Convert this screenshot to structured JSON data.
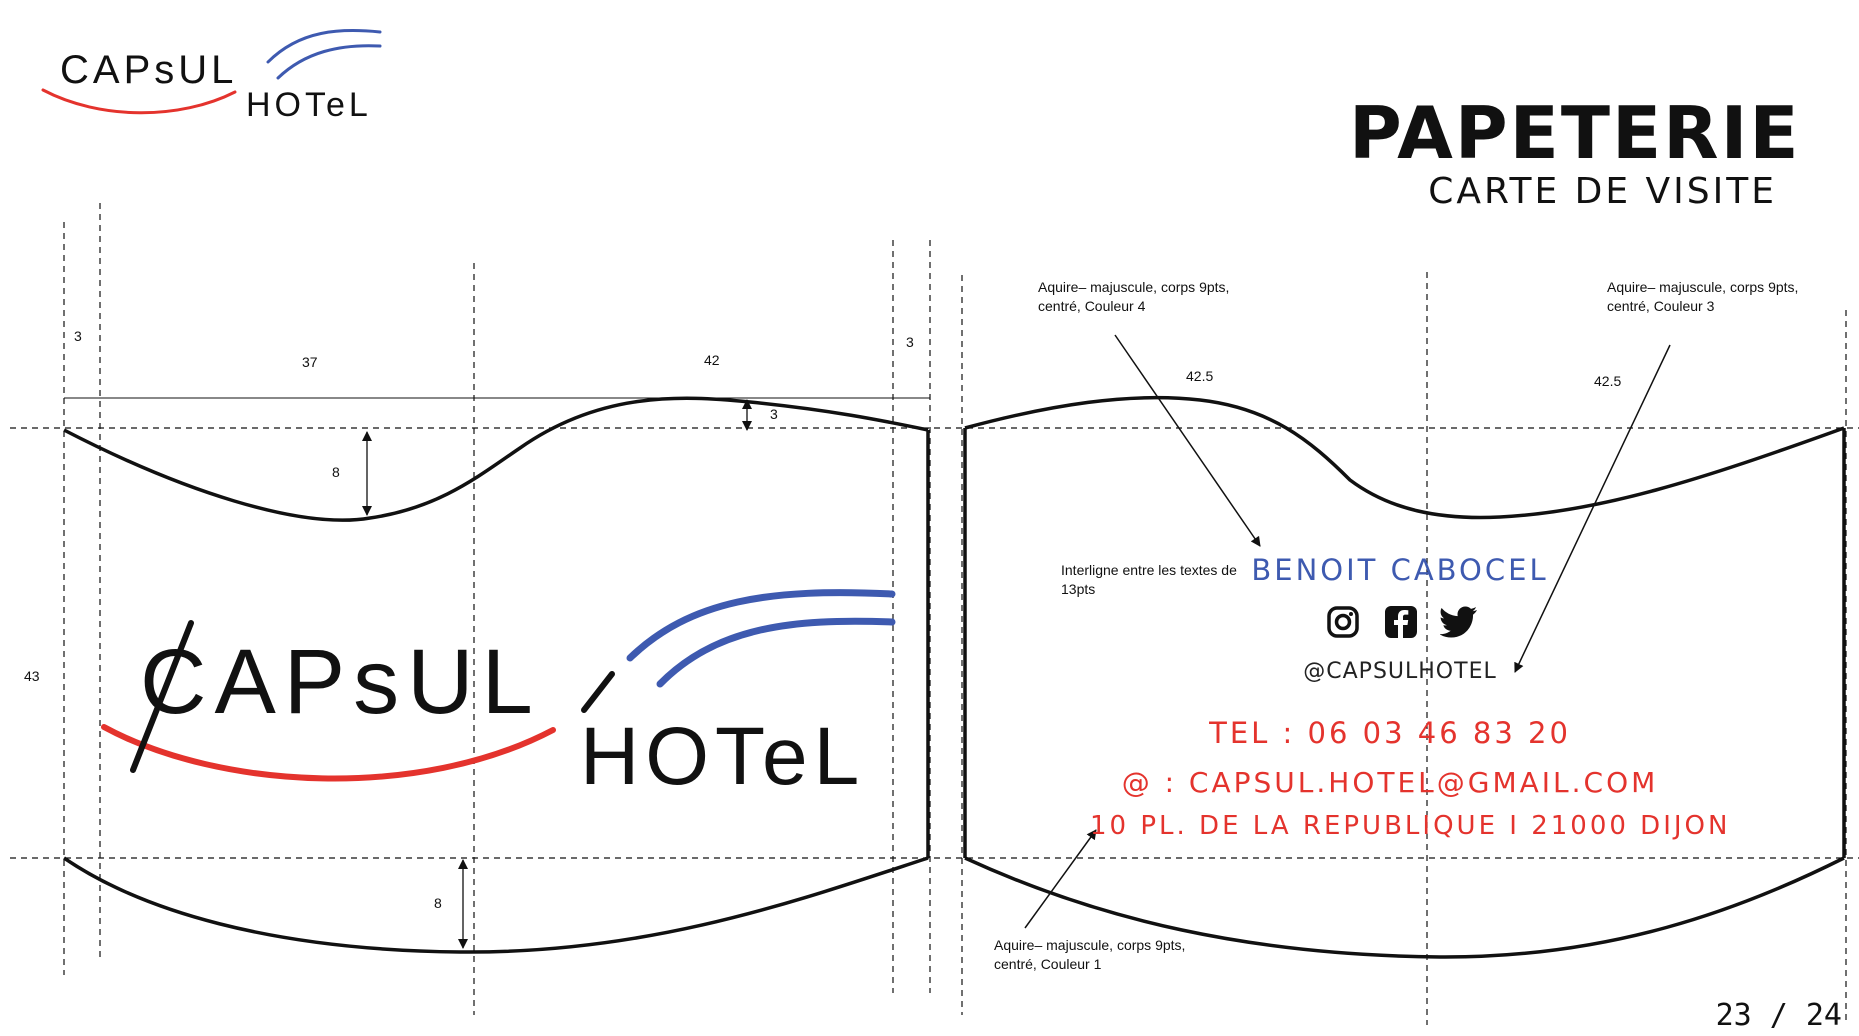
{
  "header": {
    "title": "PAPETERIE",
    "subtitle": "CARTE DE VISITE",
    "logo": {
      "word1": "CAPsUL",
      "word2": "HOTeL"
    }
  },
  "front_card": {
    "dimensions": {
      "bleed_left": "3",
      "width_left": "37",
      "width_right": "42",
      "bleed_right": "3",
      "top_gap": "3",
      "top_curve_depth": "8",
      "bottom_curve_depth": "8",
      "height": "43"
    },
    "logo": {
      "word1": "CAPsUL",
      "word2": "HOTeL"
    }
  },
  "back_card": {
    "dimensions": {
      "left_half": "42.5",
      "right_half": "42.5"
    },
    "annotations": {
      "name_note": "Aquire– majuscule, corps 9pts, centré, Couleur 4",
      "social_note": "Aquire– majuscule, corps 9pts, centré, Couleur 3",
      "spacing_note": "Interligne entre les textes de 13pts",
      "contact_note": "Aquire– majuscule, corps 9pts, centré, Couleur 1"
    },
    "name": "BENOIT CABOCEL",
    "icons": [
      "instagram-icon",
      "facebook-icon",
      "twitter-icon"
    ],
    "handle": "@CAPSULHOTEL",
    "phone": "TEL : 06 03 46 83 20",
    "email": "@ : CAPSUL.HOTEL@GMAIL.COM",
    "address": "10 PL. DE LA REPUBLIQUE I 21000 DIJON"
  },
  "colors": {
    "red": "#e4332d",
    "blue": "#3e5ab0",
    "ink": "#111111"
  },
  "pager": "23 / 24"
}
